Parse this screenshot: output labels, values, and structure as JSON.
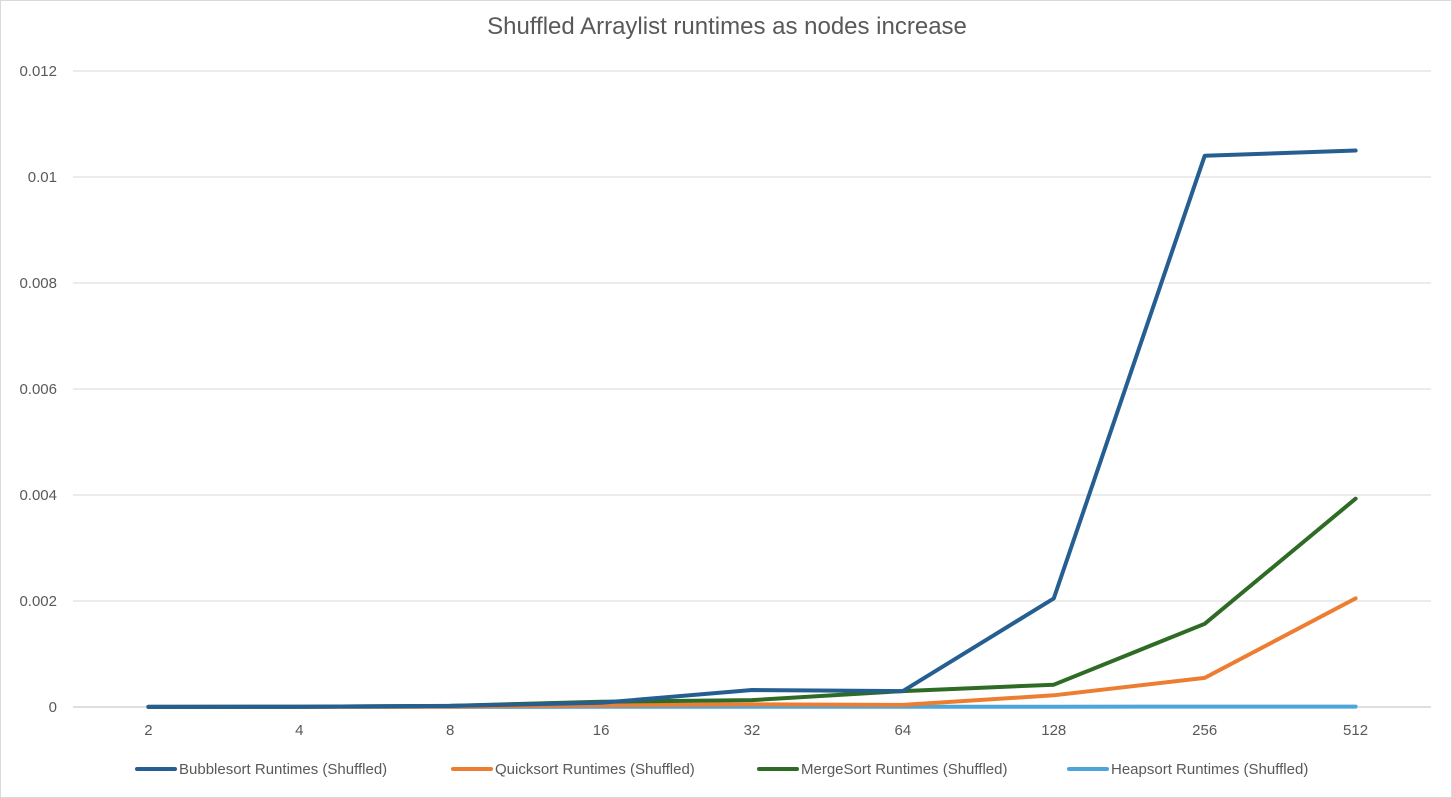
{
  "chart_data": {
    "type": "line",
    "title": "Shuffled Arraylist runtimes as nodes increase",
    "xlabel": "",
    "ylabel": "",
    "categories": [
      "2",
      "4",
      "8",
      "16",
      "32",
      "64",
      "128",
      "256",
      "512"
    ],
    "ylim": [
      0,
      0.012
    ],
    "yticks": [
      0,
      0.002,
      0.004,
      0.006,
      0.008,
      0.01,
      0.012
    ],
    "ytick_labels": [
      "0",
      "0.002",
      "0.004",
      "0.006",
      "0.008",
      "0.01",
      "0.012"
    ],
    "grid": true,
    "legend_position": "bottom",
    "series": [
      {
        "name": "Bubblesort Runtimes (Shuffled)",
        "color": "#255e91",
        "values": [
          2e-06,
          5e-06,
          2e-05,
          8e-05,
          0.00032,
          0.0003,
          0.00205,
          0.0104,
          0.0105
        ]
      },
      {
        "name": "Quicksort Runtimes (Shuffled)",
        "color": "#ed7d31",
        "values": [
          1e-06,
          2e-06,
          8e-06,
          3e-05,
          5e-05,
          4e-05,
          0.00022,
          0.00055,
          0.00205
        ]
      },
      {
        "name": "MergeSort Runtimes (Shuffled)",
        "color": "#2e6b24",
        "values": [
          2e-06,
          5e-06,
          2e-05,
          0.0001,
          0.00013,
          0.0003,
          0.00042,
          0.00157,
          0.00393
        ]
      },
      {
        "name": "Heapsort Runtimes (Shuffled)",
        "color": "#4ea5d9",
        "values": [
          1e-06,
          1e-06,
          2e-06,
          3e-06,
          4e-06,
          5e-06,
          6e-06,
          7e-06,
          8e-06
        ]
      }
    ]
  }
}
